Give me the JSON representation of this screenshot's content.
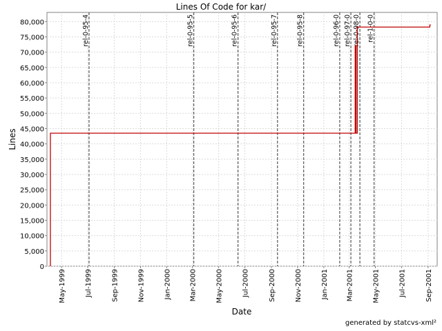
{
  "chart_data": {
    "type": "line",
    "title": "Lines Of Code for kar/",
    "xlabel": "Date",
    "ylabel": "Lines",
    "xlim": [
      "1999-03-28",
      "2001-09-22"
    ],
    "ylim": [
      0,
      83000
    ],
    "grid": true,
    "x_ticks": [
      "1999-05-01",
      "1999-07-01",
      "1999-09-01",
      "1999-11-01",
      "2000-01-01",
      "2000-03-01",
      "2000-05-01",
      "2000-07-01",
      "2000-09-01",
      "2000-11-01",
      "2001-01-01",
      "2001-03-01",
      "2001-05-01",
      "2001-07-01",
      "2001-09-01"
    ],
    "x_tick_labels": [
      "May-1999",
      "Jul-1999",
      "Sep-1999",
      "Nov-1999",
      "Jan-2000",
      "Mar-2000",
      "May-2000",
      "Jul-2000",
      "Sep-2000",
      "Nov-2000",
      "Jan-2001",
      "Mar-2001",
      "May-2001",
      "Jul-2001",
      "Sep-2001"
    ],
    "y_ticks": [
      0,
      5000,
      10000,
      15000,
      20000,
      25000,
      30000,
      35000,
      40000,
      45000,
      50000,
      55000,
      60000,
      65000,
      70000,
      75000,
      80000
    ],
    "y_tick_labels": [
      "0",
      "5,000",
      "10,000",
      "15,000",
      "20,000",
      "25,000",
      "30,000",
      "35,000",
      "40,000",
      "45,000",
      "50,000",
      "55,000",
      "60,000",
      "65,000",
      "70,000",
      "75,000",
      "80,000"
    ],
    "series": [
      {
        "color": "#c00000",
        "step": true,
        "points": [
          {
            "x": "1999-04-05",
            "y": 0
          },
          {
            "x": "1999-04-05",
            "y": 43500
          },
          {
            "x": "2001-03-15",
            "y": 43500
          },
          {
            "x": "2001-03-15",
            "y": 72000
          },
          {
            "x": "2001-03-17",
            "y": 72000
          },
          {
            "x": "2001-03-17",
            "y": 43500
          },
          {
            "x": "2001-03-20",
            "y": 43500
          },
          {
            "x": "2001-03-20",
            "y": 78200
          },
          {
            "x": "2001-09-05",
            "y": 78200
          },
          {
            "x": "2001-09-05",
            "y": 78900
          },
          {
            "x": "2001-09-07",
            "y": 78900
          }
        ]
      }
    ],
    "markers": [
      {
        "label": "rel-0-95-4",
        "x": "1999-07-04"
      },
      {
        "label": "rel-0-95-5",
        "x": "2000-03-04"
      },
      {
        "label": "rel-0-95-6",
        "x": "2000-06-15"
      },
      {
        "label": "rel-0-95-7",
        "x": "2000-09-15"
      },
      {
        "label": "rel-0-95-8",
        "x": "2000-11-15"
      },
      {
        "label": "rel-0-96-0",
        "x": "2001-02-07"
      },
      {
        "label": "rel-0-97-0",
        "x": "2001-03-05"
      },
      {
        "label": "rel-0-98-0",
        "x": "2001-03-26"
      },
      {
        "label": "rel-1-0-0",
        "x": "2001-04-28"
      }
    ]
  },
  "footer": {
    "credit": "generated by statcvs-xml²"
  }
}
